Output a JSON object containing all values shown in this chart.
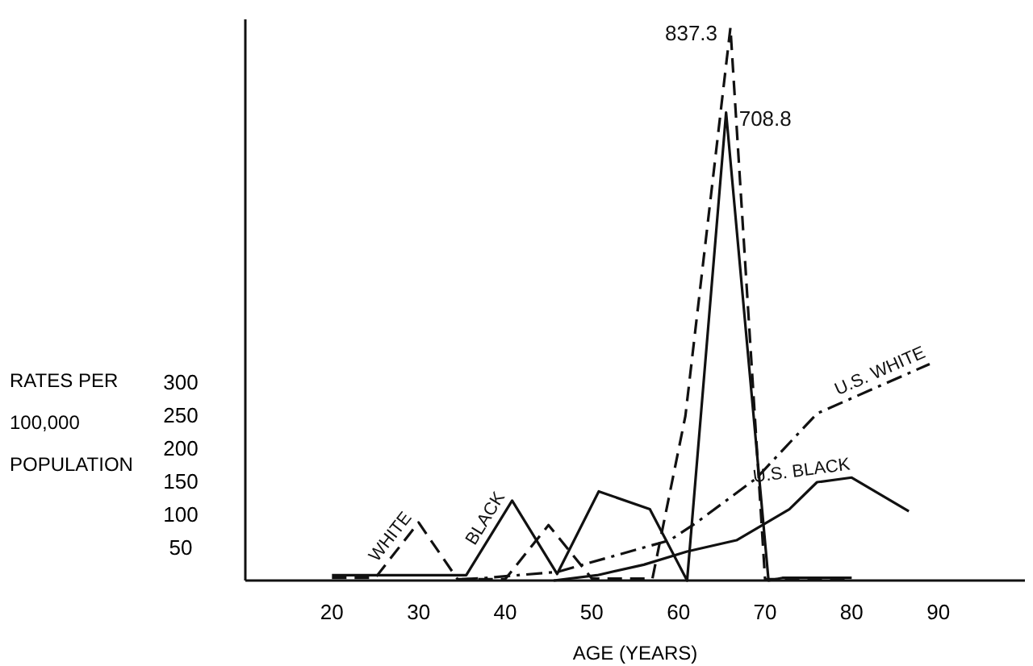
{
  "chart_data": {
    "type": "line",
    "xlabel": "AGE (YEARS)",
    "ylabel": "RATES PER 100,000 POPULATION",
    "xlim": [
      10,
      100
    ],
    "xticks": [
      20,
      30,
      40,
      50,
      60,
      70,
      80,
      90
    ],
    "ylim": [
      0,
      850
    ],
    "yticks": [
      50,
      100,
      150,
      200,
      250,
      300
    ],
    "grid": false,
    "marker": "none",
    "series": [
      {
        "name": "WHITE",
        "color": "#111111",
        "line_style": "dashed",
        "x": [
          20,
          25,
          30,
          34.5,
          40,
          45,
          50,
          57,
          60.8,
          66,
          70,
          80
        ],
        "values": [
          4,
          4,
          88,
          2,
          2,
          84,
          3,
          3,
          249,
          837.3,
          2,
          2
        ],
        "value_labels": [
          null,
          null,
          null,
          null,
          null,
          null,
          null,
          null,
          null,
          "837.3",
          null,
          null
        ]
      },
      {
        "name": "BLACK",
        "color": "#111111",
        "line_style": "solid",
        "x": [
          20,
          35.5,
          40.8,
          46,
          50.8,
          56.7,
          61,
          65.5,
          70.4,
          72,
          80
        ],
        "values": [
          8,
          8,
          121,
          10,
          135,
          108,
          0,
          708.8,
          0,
          4,
          4
        ],
        "value_labels": [
          null,
          null,
          null,
          null,
          null,
          null,
          null,
          "708.8",
          null,
          null,
          null
        ]
      },
      {
        "name": "U.S. WHITE",
        "color": "#111111",
        "line_style": "dashdot",
        "x": [
          35,
          37.7,
          46,
          56,
          59,
          62,
          69,
          76,
          89
        ],
        "values": [
          2,
          4,
          13,
          50,
          61,
          87,
          155,
          253,
          328
        ]
      },
      {
        "name": "U.S. BLACK",
        "color": "#111111",
        "line_style": "solid",
        "x": [
          45.6,
          50.6,
          56,
          61,
          66.7,
          72.8,
          76,
          80,
          86.6
        ],
        "values": [
          0,
          8,
          24,
          44,
          61,
          108,
          149,
          156,
          105
        ]
      }
    ]
  }
}
